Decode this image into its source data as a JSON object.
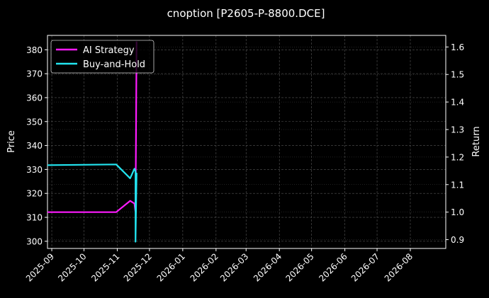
{
  "chart_data": {
    "type": "line",
    "title": "cnoption [P2605-P-8800.DCE]",
    "ylabel": "Price",
    "y2label": "Return",
    "xlim": [
      "2025-08-28",
      "2026-09-03"
    ],
    "ylim": [
      297,
      386
    ],
    "y2lim": [
      0.868,
      1.642
    ],
    "x_tick_labels": [
      "2025-09",
      "2025-10",
      "2025-11",
      "2025-12",
      "2026-01",
      "2026-02",
      "2026-03",
      "2026-04",
      "2026-05",
      "2026-06",
      "2026-07",
      "2026-08"
    ],
    "y_ticks": [
      300,
      310,
      320,
      330,
      340,
      350,
      360,
      370,
      380
    ],
    "y2_ticks": [
      0.9,
      1.0,
      1.1,
      1.2,
      1.3,
      1.4,
      1.5,
      1.6
    ],
    "grid": true,
    "legend": "top-left",
    "series": [
      {
        "name": "AI Strategy",
        "axis": "right",
        "color": "#ff1aff",
        "x": [
          "2025-08-28",
          "2025-10-31",
          "2025-11-13",
          "2025-11-17",
          "2025-11-18",
          "2025-11-19"
        ],
        "values": [
          1.0,
          1.0,
          1.041,
          1.031,
          1.0,
          1.62
        ]
      },
      {
        "name": "Buy-and-Hold",
        "axis": "left",
        "color": "#22e5f0",
        "x": [
          "2025-08-28",
          "2025-10-31",
          "2025-11-13",
          "2025-11-17",
          "2025-11-18",
          "2025-11-18",
          "2025-11-19"
        ],
        "values": [
          331.8,
          332.1,
          326.3,
          330.3,
          329.3,
          299.8,
          328.6
        ]
      }
    ]
  }
}
